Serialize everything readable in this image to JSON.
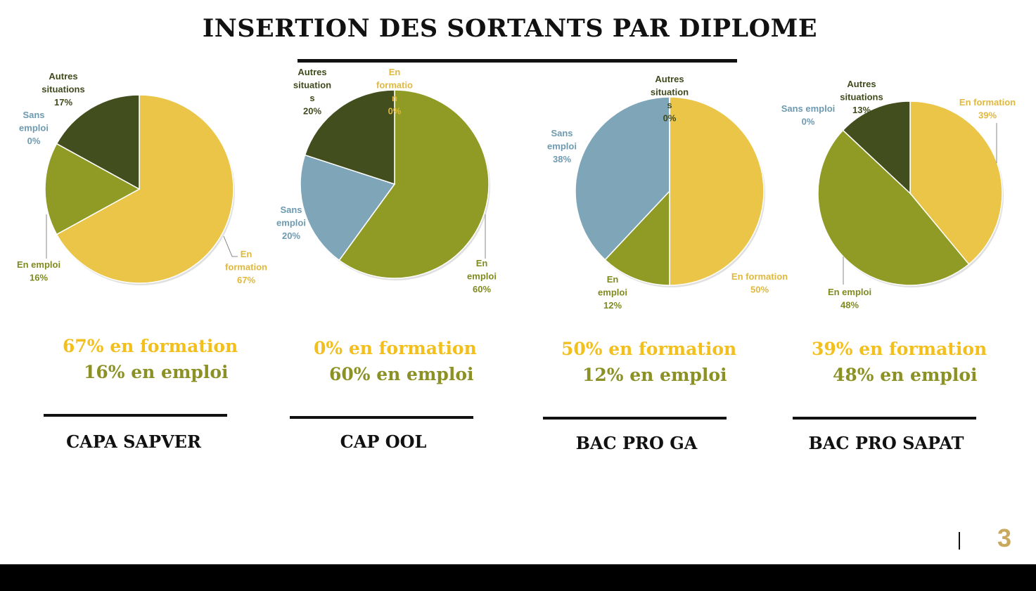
{
  "title": "INSERTION DES SORTANTS PAR DIPLOME",
  "page_number": "3",
  "colors": {
    "en_formation": "#EAC547",
    "en_emploi": "#909B26",
    "sans_emploi": "#7EA6B8",
    "autres_situations": "#434E1E",
    "summary_formation": "#F2BF1D",
    "summary_emploi": "#8B9125",
    "page_number": "#C9A95C"
  },
  "chart_data": [
    {
      "type": "pie",
      "diploma": "CAPA SAPVER",
      "slices": [
        {
          "label": "En formation",
          "value": 67,
          "value_text": "67%"
        },
        {
          "label": "En emploi",
          "value": 16,
          "value_text": "16%"
        },
        {
          "label": "Sans emploi",
          "value": 0,
          "value_text": "0%"
        },
        {
          "label": "Autres situations",
          "value": 17,
          "value_text": "17%"
        }
      ],
      "summary_formation": "67% en formation",
      "summary_emploi": "16% en emploi"
    },
    {
      "type": "pie",
      "diploma": "CAP OOL",
      "slices": [
        {
          "label": "En formation",
          "value": 0,
          "value_text": "0%"
        },
        {
          "label": "En emploi",
          "value": 60,
          "value_text": "60%"
        },
        {
          "label": "Sans emploi",
          "value": 20,
          "value_text": "20%"
        },
        {
          "label": "Autres situations",
          "value": 20,
          "value_text": "20%"
        }
      ],
      "summary_formation": "0% en formation",
      "summary_emploi": "60% en emploi"
    },
    {
      "type": "pie",
      "diploma": "BAC PRO GA",
      "slices": [
        {
          "label": "En formation",
          "value": 50,
          "value_text": "50%"
        },
        {
          "label": "En emploi",
          "value": 12,
          "value_text": "12%"
        },
        {
          "label": "Sans emploi",
          "value": 38,
          "value_text": "38%"
        },
        {
          "label": "Autres situations",
          "value": 0,
          "value_text": "0%"
        }
      ],
      "summary_formation": "50% en formation",
      "summary_emploi": "12% en emploi"
    },
    {
      "type": "pie",
      "diploma": "BAC PRO SAPAT",
      "slices": [
        {
          "label": "En formation",
          "value": 39,
          "value_text": "39%"
        },
        {
          "label": "En emploi",
          "value": 48,
          "value_text": "48%"
        },
        {
          "label": "Sans emploi",
          "value": 0,
          "value_text": "0%"
        },
        {
          "label": "Autres situations",
          "value": 13,
          "value_text": "13%"
        }
      ],
      "summary_formation": "39% en formation",
      "summary_emploi": "48% en emploi"
    }
  ]
}
